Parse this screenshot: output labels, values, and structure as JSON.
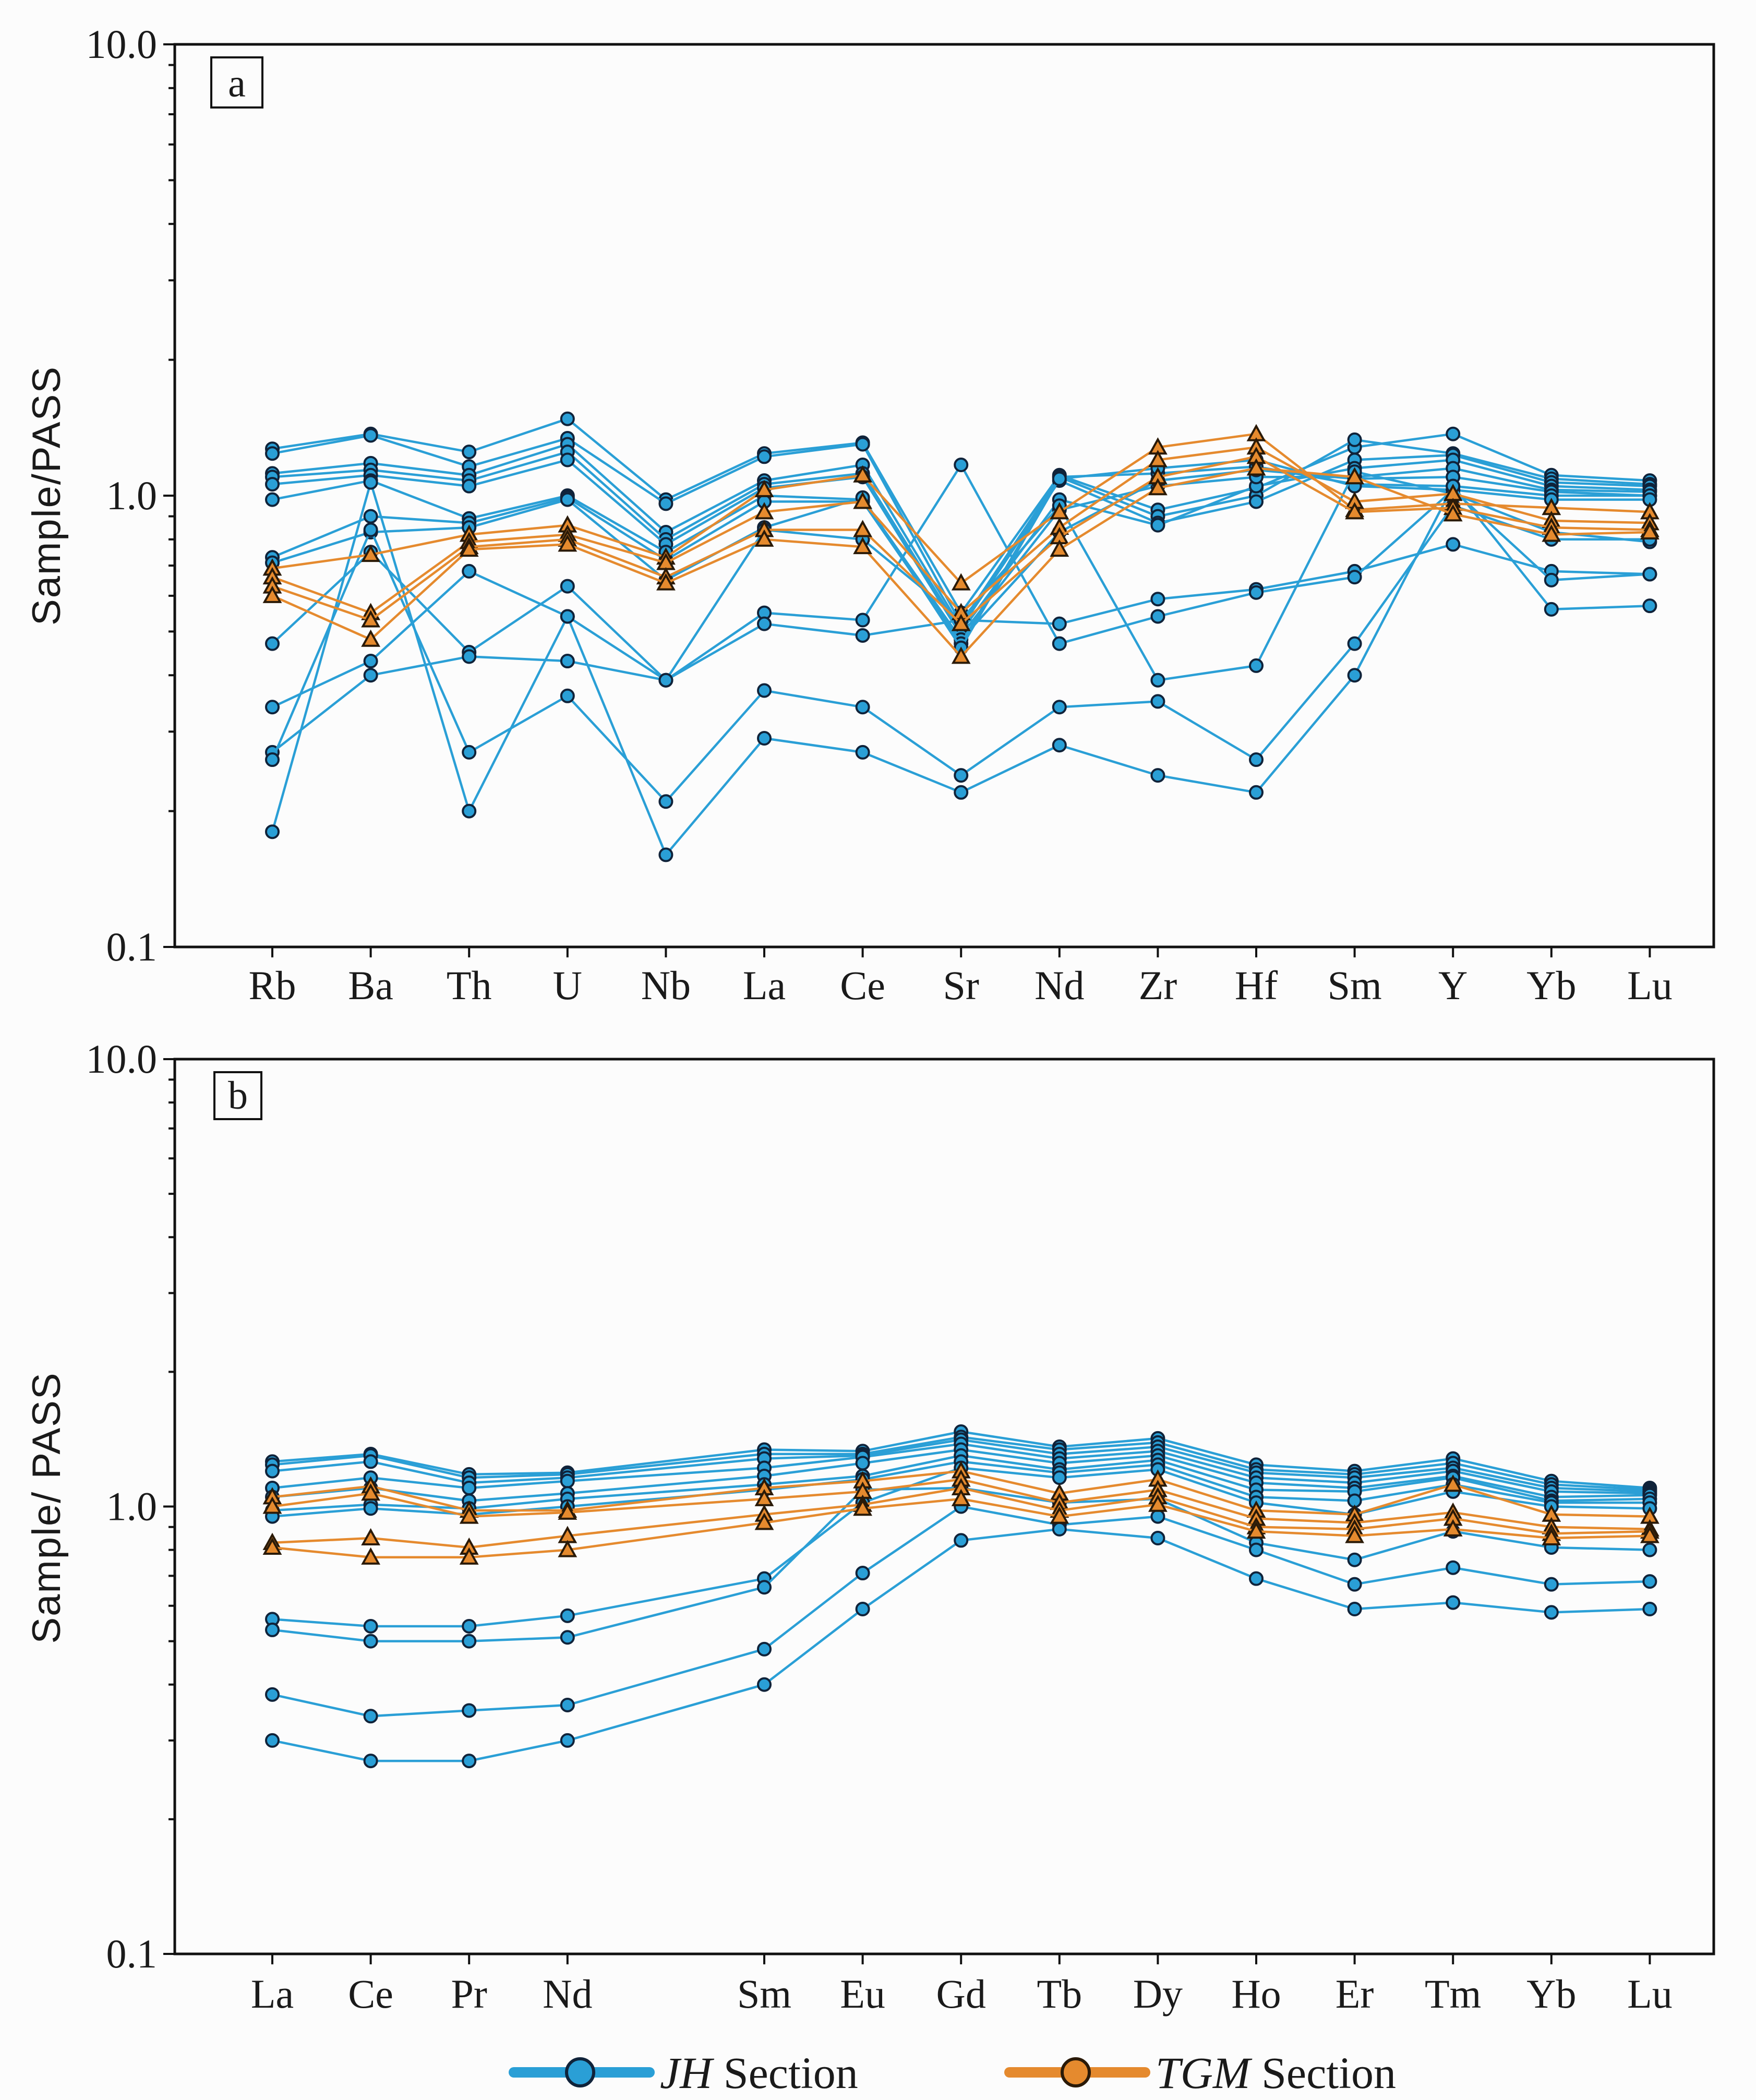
{
  "chart_data": [
    {
      "panel_label": "a",
      "type": "line",
      "scale": "log",
      "ylabel": "Sample/PASS",
      "ylim": [
        0.1,
        10.0
      ],
      "y_tick_labels": [
        "10.0",
        "1.0",
        "0.1"
      ],
      "y_tick_values": [
        10,
        1,
        0.1
      ],
      "categories": [
        "Rb",
        "Ba",
        "Th",
        "U",
        "Nb",
        "La",
        "Ce",
        "Sr",
        "Nd",
        "Zr",
        "Hf",
        "Sm",
        "Y",
        "Yb",
        "Lu"
      ],
      "jh_series": [
        [
          1.27,
          1.37,
          1.25,
          1.48,
          0.98,
          1.24,
          1.31,
          0.55,
          1.11,
          0.93,
          1.04,
          1.28,
          1.37,
          1.11,
          1.08
        ],
        [
          1.24,
          1.36,
          1.16,
          1.34,
          0.96,
          1.22,
          1.3,
          0.52,
          1.1,
          0.9,
          1.0,
          1.33,
          1.24,
          1.09,
          1.06
        ],
        [
          1.12,
          1.18,
          1.11,
          1.3,
          0.83,
          1.08,
          1.17,
          0.51,
          1.08,
          0.87,
          0.97,
          1.2,
          1.23,
          1.07,
          1.05
        ],
        [
          1.1,
          1.14,
          1.08,
          1.25,
          0.8,
          1.06,
          1.12,
          0.5,
          0.98,
          0.86,
          1.05,
          1.15,
          1.2,
          1.05,
          1.03
        ],
        [
          1.06,
          1.11,
          1.05,
          1.2,
          0.78,
          1.04,
          1.1,
          0.49,
          0.93,
          1.05,
          1.1,
          1.1,
          1.15,
          1.03,
          1.02
        ],
        [
          0.98,
          1.08,
          0.89,
          1.0,
          0.75,
          1.0,
          0.98,
          0.48,
          0.83,
          1.08,
          1.14,
          1.09,
          1.1,
          1.02,
          1.0
        ],
        [
          0.73,
          0.9,
          0.87,
          0.99,
          0.72,
          0.97,
          0.97,
          0.47,
          1.1,
          1.12,
          1.16,
          1.06,
          1.05,
          1.0,
          1.0
        ],
        [
          0.71,
          0.83,
          0.85,
          0.98,
          0.65,
          0.85,
          0.99,
          0.46,
          1.09,
          1.15,
          1.2,
          1.05,
          1.03,
          0.98,
          0.98
        ],
        [
          0.47,
          0.75,
          0.45,
          0.63,
          0.39,
          0.84,
          0.8,
          0.53,
          0.52,
          0.59,
          0.62,
          0.68,
          0.78,
          0.68,
          0.67
        ],
        [
          0.34,
          0.43,
          0.68,
          0.54,
          0.39,
          0.55,
          0.53,
          1.17,
          0.47,
          0.54,
          0.61,
          0.66,
          1.03,
          0.65,
          0.67
        ],
        [
          0.27,
          0.4,
          0.44,
          0.43,
          0.39,
          0.52,
          0.49,
          0.53,
          0.95,
          0.39,
          0.42,
          1.13,
          1.01,
          0.83,
          0.79
        ],
        [
          0.26,
          0.84,
          0.27,
          0.36,
          0.21,
          0.37,
          0.34,
          0.24,
          0.34,
          0.35,
          0.26,
          0.47,
          0.95,
          0.8,
          0.8
        ],
        [
          0.18,
          1.07,
          0.2,
          0.54,
          0.16,
          0.29,
          0.27,
          0.22,
          0.28,
          0.24,
          0.22,
          0.4,
          1.05,
          0.56,
          0.57
        ]
      ],
      "tgm_series": [
        [
          0.69,
          0.74,
          0.82,
          0.86,
          0.73,
          1.03,
          1.11,
          0.64,
          0.92,
          1.28,
          1.37,
          0.93,
          0.96,
          0.94,
          0.92
        ],
        [
          0.66,
          0.55,
          0.79,
          0.82,
          0.71,
          0.92,
          0.97,
          0.55,
          0.85,
          1.2,
          1.28,
          0.97,
          1.01,
          0.88,
          0.87
        ],
        [
          0.63,
          0.53,
          0.77,
          0.8,
          0.66,
          0.84,
          0.84,
          0.52,
          0.81,
          1.1,
          1.22,
          0.92,
          0.94,
          0.85,
          0.84
        ],
        [
          0.6,
          0.48,
          0.76,
          0.78,
          0.64,
          0.8,
          0.77,
          0.44,
          0.76,
          1.04,
          1.15,
          1.1,
          0.91,
          0.82,
          0.83
        ]
      ]
    },
    {
      "panel_label": "b",
      "type": "line",
      "scale": "log",
      "ylabel": "Sample/ PASS",
      "ylim": [
        0.1,
        10.0
      ],
      "y_tick_labels": [
        "10.0",
        "1.0",
        "0.1"
      ],
      "y_tick_values": [
        10,
        1,
        0.1
      ],
      "categories": [
        "La",
        "Ce",
        "Pr",
        "Nd",
        "Sm",
        "Eu",
        "Gd",
        "Tb",
        "Dy",
        "Ho",
        "Er",
        "Tm",
        "Yb",
        "Lu"
      ],
      "category_positions": [
        0,
        1,
        2,
        3,
        5,
        6,
        7,
        8,
        9,
        10,
        11,
        12,
        13,
        14
      ],
      "jh_series": [
        [
          1.26,
          1.31,
          1.18,
          1.19,
          1.34,
          1.33,
          1.47,
          1.36,
          1.42,
          1.24,
          1.2,
          1.28,
          1.14,
          1.1
        ],
        [
          1.24,
          1.3,
          1.16,
          1.18,
          1.31,
          1.31,
          1.43,
          1.34,
          1.39,
          1.21,
          1.18,
          1.25,
          1.12,
          1.09
        ],
        [
          1.2,
          1.26,
          1.13,
          1.16,
          1.28,
          1.3,
          1.41,
          1.31,
          1.36,
          1.19,
          1.16,
          1.22,
          1.1,
          1.08
        ],
        [
          1.1,
          1.16,
          1.1,
          1.14,
          1.22,
          1.29,
          1.38,
          1.28,
          1.33,
          1.16,
          1.13,
          1.2,
          1.08,
          1.07
        ],
        [
          1.05,
          1.1,
          1.03,
          1.07,
          1.17,
          1.25,
          1.34,
          1.25,
          1.3,
          1.13,
          1.1,
          1.17,
          1.05,
          1.06
        ],
        [
          0.98,
          1.01,
          0.99,
          1.04,
          1.12,
          1.17,
          1.3,
          1.21,
          1.27,
          1.09,
          1.08,
          1.16,
          1.03,
          1.04
        ],
        [
          0.95,
          0.99,
          0.96,
          1.0,
          1.09,
          1.15,
          1.26,
          1.19,
          1.24,
          1.05,
          1.03,
          1.12,
          1.02,
          1.02
        ],
        [
          0.56,
          0.54,
          0.54,
          0.57,
          0.69,
          1.02,
          1.22,
          1.16,
          1.21,
          1.02,
          0.96,
          1.08,
          1.0,
          0.99
        ],
        [
          0.53,
          0.5,
          0.5,
          0.51,
          0.66,
          1.09,
          1.1,
          1.02,
          1.04,
          0.83,
          0.76,
          0.88,
          0.81,
          0.8
        ],
        [
          0.38,
          0.34,
          0.35,
          0.36,
          0.48,
          0.71,
          1.0,
          0.91,
          0.95,
          0.8,
          0.67,
          0.73,
          0.67,
          0.68
        ],
        [
          0.3,
          0.27,
          0.27,
          0.3,
          0.4,
          0.59,
          0.84,
          0.89,
          0.85,
          0.69,
          0.59,
          0.61,
          0.58,
          0.59
        ]
      ],
      "tgm_series": [
        [
          1.05,
          1.11,
          0.98,
          0.98,
          1.1,
          1.14,
          1.2,
          1.07,
          1.15,
          0.98,
          0.96,
          1.12,
          0.96,
          0.95
        ],
        [
          1.0,
          1.07,
          0.95,
          0.97,
          1.04,
          1.08,
          1.15,
          1.02,
          1.09,
          0.94,
          0.92,
          0.97,
          0.9,
          0.89
        ],
        [
          0.83,
          0.85,
          0.81,
          0.86,
          0.96,
          1.01,
          1.1,
          0.98,
          1.05,
          0.9,
          0.89,
          0.94,
          0.87,
          0.88
        ],
        [
          0.81,
          0.77,
          0.77,
          0.8,
          0.92,
          0.99,
          1.04,
          0.95,
          1.01,
          0.88,
          0.86,
          0.89,
          0.85,
          0.86
        ]
      ]
    }
  ],
  "legend": {
    "entries": [
      {
        "italic": "JH",
        "rest": " Section",
        "color": "#2a9fd6"
      },
      {
        "italic": "TGM",
        "rest": " Section",
        "color": "#e58a2e"
      }
    ]
  }
}
